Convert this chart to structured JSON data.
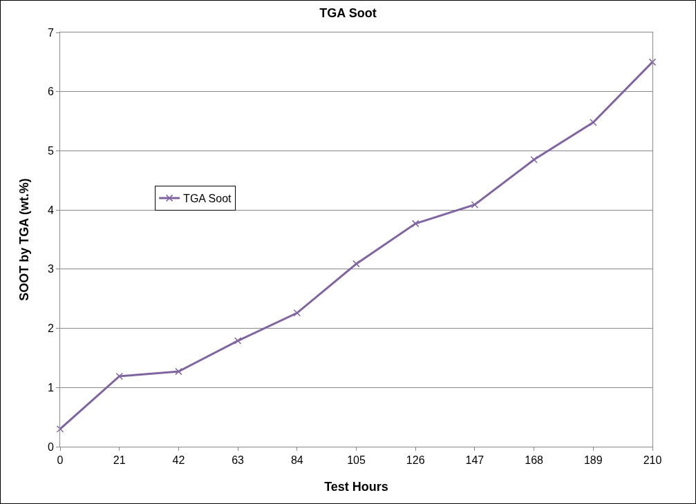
{
  "chart_data": {
    "type": "line",
    "title": "TGA Soot",
    "xlabel": "Test Hours",
    "ylabel": "SOOT by TGA (wt.%)",
    "x": [
      0,
      21,
      42,
      63,
      84,
      105,
      126,
      147,
      168,
      189,
      210
    ],
    "series": [
      {
        "name": "TGA Soot",
        "color": "#8064a2",
        "values": [
          0.3,
          1.19,
          1.27,
          1.79,
          2.26,
          3.09,
          3.77,
          4.09,
          4.85,
          5.48,
          6.5
        ]
      }
    ],
    "xlim": [
      0,
      210
    ],
    "xticks": [
      0,
      21,
      42,
      63,
      84,
      105,
      126,
      147,
      168,
      189,
      210
    ],
    "ylim": [
      0,
      7
    ],
    "yticks": [
      0,
      1,
      2,
      3,
      4,
      5,
      6,
      7
    ],
    "grid": "y",
    "legend": "left",
    "marker": "cross",
    "line_style": "solid"
  }
}
